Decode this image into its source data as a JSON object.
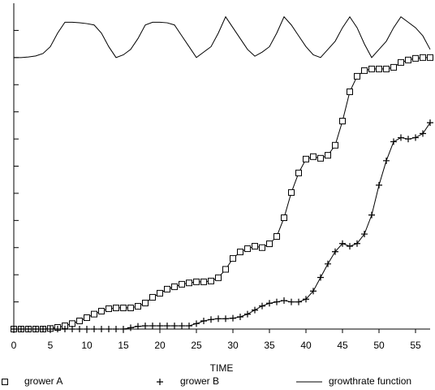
{
  "chart_data": {
    "type": "line",
    "xlabel": "TIME",
    "x": [
      0,
      1,
      2,
      3,
      4,
      5,
      6,
      7,
      8,
      9,
      10,
      11,
      12,
      13,
      14,
      15,
      16,
      17,
      18,
      19,
      20,
      21,
      22,
      23,
      24,
      25,
      26,
      27,
      28,
      29,
      30,
      31,
      32,
      33,
      34,
      35,
      36,
      37,
      38,
      39,
      40,
      41,
      42,
      43,
      44,
      45,
      46,
      47,
      48,
      49,
      50,
      51,
      52,
      53,
      54,
      55,
      56,
      57
    ],
    "xlim": [
      0,
      57
    ],
    "xticks": [
      0,
      5,
      10,
      15,
      20,
      25,
      30,
      35,
      40,
      45,
      50,
      55
    ],
    "ylim": [
      0,
      12
    ],
    "yticks": [
      0,
      1,
      2,
      3,
      4,
      5,
      6,
      7,
      8,
      9,
      10,
      11
    ],
    "series": [
      {
        "name": "grower A",
        "color": "#000000",
        "marker": "square",
        "values": [
          0,
          0,
          0,
          0,
          0,
          0.02,
          0.06,
          0.12,
          0.2,
          0.3,
          0.42,
          0.55,
          0.66,
          0.75,
          0.78,
          0.78,
          0.78,
          0.84,
          0.96,
          1.17,
          1.32,
          1.47,
          1.56,
          1.65,
          1.7,
          1.74,
          1.74,
          1.77,
          1.89,
          2.2,
          2.6,
          2.84,
          2.96,
          3.05,
          3.0,
          3.14,
          3.41,
          4.1,
          5.03,
          5.75,
          6.26,
          6.35,
          6.29,
          6.4,
          6.77,
          7.66,
          8.74,
          9.31,
          9.52,
          9.58,
          9.58,
          9.58,
          9.64,
          9.82,
          9.91,
          9.97,
          10.0,
          10.0
        ]
      },
      {
        "name": "grower B",
        "color": "#000000",
        "marker": "plus",
        "values": [
          0,
          0,
          0,
          0,
          0,
          0,
          0,
          0,
          0,
          0,
          0,
          0,
          0,
          0,
          0,
          0,
          0.05,
          0.1,
          0.12,
          0.12,
          0.12,
          0.12,
          0.12,
          0.12,
          0.12,
          0.2,
          0.3,
          0.35,
          0.38,
          0.38,
          0.4,
          0.45,
          0.55,
          0.7,
          0.85,
          0.95,
          1.0,
          1.05,
          1.0,
          1.0,
          1.1,
          1.4,
          1.9,
          2.4,
          2.85,
          3.15,
          3.05,
          3.15,
          3.5,
          4.2,
          5.3,
          6.2,
          6.9,
          7.05,
          7.0,
          7.05,
          7.2,
          7.6
        ]
      },
      {
        "name": "growthrate function",
        "color": "#000000",
        "marker": "none",
        "values": [
          10.0,
          10.0,
          10.02,
          10.06,
          10.15,
          10.4,
          10.9,
          11.3,
          11.3,
          11.28,
          11.25,
          11.2,
          10.9,
          10.4,
          10.0,
          10.1,
          10.3,
          10.7,
          11.2,
          11.3,
          11.3,
          11.28,
          11.2,
          10.8,
          10.4,
          10.0,
          10.2,
          10.4,
          10.9,
          11.5,
          11.1,
          10.7,
          10.3,
          10.05,
          10.2,
          10.4,
          10.9,
          11.5,
          11.2,
          10.8,
          10.4,
          10.1,
          10.0,
          10.3,
          10.6,
          11.1,
          11.5,
          11.1,
          10.5,
          10.0,
          10.3,
          10.6,
          11.1,
          11.5,
          11.3,
          11.1,
          10.8,
          10.3
        ]
      }
    ]
  }
}
